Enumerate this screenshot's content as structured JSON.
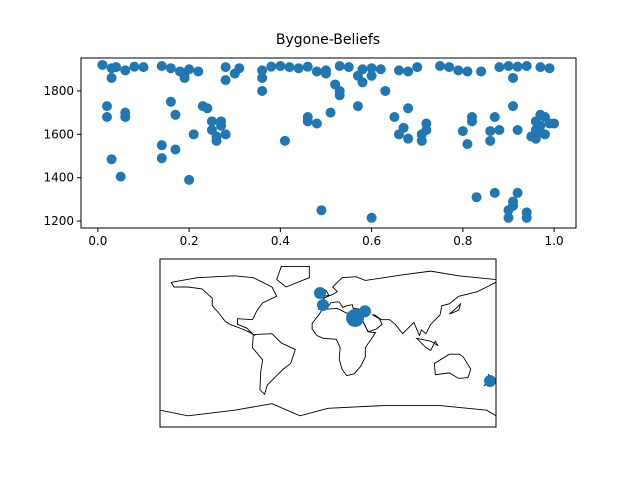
{
  "chart_data": [
    {
      "type": "scatter",
      "title": "Bygone-Beliefs",
      "color": "#1f77b4",
      "xlim": [
        -0.037,
        1.048
      ],
      "ylim": [
        1168,
        1952
      ],
      "xticks": [
        {
          "value": 0,
          "label": "0.0"
        },
        {
          "value": 0.2,
          "label": "0.2"
        },
        {
          "value": 0.4,
          "label": "0.4"
        },
        {
          "value": 0.6,
          "label": "0.6"
        },
        {
          "value": 0.8,
          "label": "0.8"
        },
        {
          "value": 1,
          "label": "1.0"
        }
      ],
      "yticks": [
        1200,
        1400,
        1600,
        1800
      ],
      "x": [
        0.01,
        0.03,
        0.04,
        0.06,
        0.08,
        0.1,
        0.14,
        0.16,
        0.18,
        0.19,
        0.2,
        0.22,
        0.28,
        0.31,
        0.36,
        0.38,
        0.4,
        0.42,
        0.44,
        0.46,
        0.48,
        0.5,
        0.53,
        0.55,
        0.58,
        0.6,
        0.62,
        0.66,
        0.68,
        0.7,
        0.75,
        0.77,
        0.79,
        0.81,
        0.84,
        0.88,
        0.9,
        0.92,
        0.94,
        0.97,
        0.99,
        0.02,
        0.02,
        0.03,
        0.06,
        0.06,
        0.03,
        0.05,
        0.14,
        0.14,
        0.16,
        0.17,
        0.17,
        0.19,
        0.2,
        0.21,
        0.23,
        0.24,
        0.25,
        0.25,
        0.26,
        0.26,
        0.27,
        0.28,
        0.27,
        0.28,
        0.3,
        0.36,
        0.36,
        0.41,
        0.46,
        0.46,
        0.48,
        0.49,
        0.5,
        0.51,
        0.52,
        0.53,
        0.53,
        0.57,
        0.57,
        0.58,
        0.6,
        0.6,
        0.63,
        0.65,
        0.66,
        0.67,
        0.68,
        0.68,
        0.71,
        0.71,
        0.72,
        0.72,
        0.8,
        0.81,
        0.82,
        0.82,
        0.83,
        0.86,
        0.86,
        0.87,
        0.87,
        0.88,
        0.9,
        0.9,
        0.91,
        0.91,
        0.91,
        0.91,
        0.92,
        0.92,
        0.94,
        0.94,
        0.95,
        0.96,
        0.96,
        0.97,
        0.97,
        0.98,
        0.98,
        0.99,
        1.0,
        0.96,
        0.97
      ],
      "y": [
        1920,
        1905,
        1910,
        1895,
        1912,
        1910,
        1915,
        1905,
        1890,
        1880,
        1900,
        1890,
        1910,
        1905,
        1895,
        1912,
        1915,
        1910,
        1905,
        1912,
        1890,
        1895,
        1915,
        1910,
        1900,
        1905,
        1900,
        1895,
        1890,
        1910,
        1915,
        1910,
        1895,
        1890,
        1890,
        1910,
        1915,
        1912,
        1915,
        1910,
        1905,
        1730,
        1680,
        1860,
        1680,
        1700,
        1485,
        1405,
        1550,
        1490,
        1750,
        1530,
        1690,
        1860,
        1390,
        1600,
        1730,
        1720,
        1660,
        1620,
        1590,
        1570,
        1640,
        1600,
        1660,
        1850,
        1880,
        1800,
        1860,
        1570,
        1680,
        1660,
        1650,
        1250,
        1880,
        1700,
        1830,
        1780,
        1800,
        1870,
        1730,
        1840,
        1215,
        1870,
        1800,
        1680,
        1600,
        1630,
        1720,
        1580,
        1570,
        1600,
        1650,
        1620,
        1615,
        1555,
        1680,
        1660,
        1310,
        1570,
        1615,
        1330,
        1680,
        1620,
        1215,
        1250,
        1270,
        1290,
        1730,
        1860,
        1620,
        1330,
        1215,
        1240,
        1590,
        1620,
        1660,
        1690,
        1640,
        1600,
        1680,
        1650,
        1650,
        1580,
        1610
      ]
    },
    {
      "type": "map",
      "color": "#1f77b4",
      "xlim": [
        -180,
        180
      ],
      "ylim": [
        -90,
        90
      ],
      "x": [
        -8.6,
        -5.4,
        29,
        39.6,
        173.6
      ],
      "y": [
        53.6,
        40.7,
        26.8,
        34,
        -40.7
      ],
      "sizes": [
        6,
        6,
        9,
        6,
        6
      ]
    }
  ]
}
